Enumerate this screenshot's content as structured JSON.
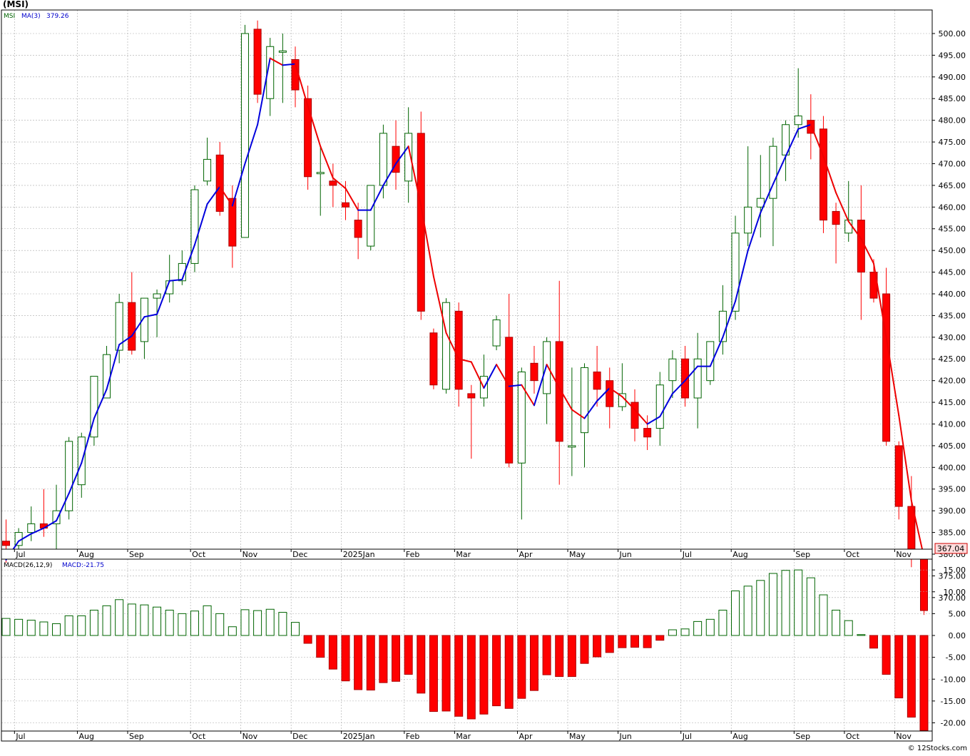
{
  "title": "(MSI)",
  "price_panel": {
    "legend_symbol": "MSI",
    "legend_ma": "MA(3)",
    "legend_ma_value": "379.26",
    "last_price_label": "367.04",
    "y_ticks": [
      370,
      375,
      380,
      385,
      390,
      395,
      400,
      405,
      410,
      415,
      420,
      425,
      430,
      435,
      440,
      445,
      450,
      455,
      460,
      465,
      470,
      475,
      480,
      485,
      490,
      495,
      500
    ],
    "y_tick_labels": [
      "370.00",
      "375.00",
      "380.00",
      "385.00",
      "390.00",
      "395.00",
      "400.00",
      "405.00",
      "410.00",
      "415.00",
      "420.00",
      "425.00",
      "430.00",
      "435.00",
      "440.00",
      "445.00",
      "450.00",
      "455.00",
      "460.00",
      "465.00",
      "470.00",
      "475.00",
      "480.00",
      "485.00",
      "490.00",
      "495.00",
      "500.00"
    ]
  },
  "macd_panel": {
    "legend_name": "MACD(26,12,9)",
    "legend_value": "MACD:-21.75",
    "y_ticks": [
      -20,
      -15,
      -10,
      -5,
      0,
      5,
      10,
      15
    ],
    "y_tick_labels": [
      "-20.00",
      "-15.00",
      "-10.00",
      "-5.00",
      "0.00",
      "5.00",
      "10.00",
      "15.00"
    ]
  },
  "month_labels": [
    "Jul",
    "Aug",
    "Sep",
    "Oct",
    "Nov",
    "Dec",
    "2025Jan",
    "Feb",
    "Mar",
    "Apr",
    "May",
    "Jun",
    "Jul",
    "Aug",
    "Sep",
    "Oct",
    "Nov"
  ],
  "watermark": "© 12Stocks.com",
  "colors": {
    "up": "#006400",
    "down": "#ff0000",
    "ma_up": "#0000dd",
    "ma_down": "#ee0000",
    "grid": "#aaaaaa",
    "last_label_bg": "#ffdddd"
  },
  "chart_data": {
    "type": "candlestick",
    "period": "weekly",
    "month_start_index": [
      1,
      6,
      10,
      15,
      19,
      23,
      27,
      32,
      36,
      41,
      45,
      49,
      54,
      58,
      63,
      67,
      71
    ],
    "ohlc": [
      [
        383,
        388,
        378,
        382
      ],
      [
        382,
        386,
        380,
        385
      ],
      [
        385,
        391,
        383,
        387
      ],
      [
        387,
        395,
        384,
        386
      ],
      [
        387,
        396,
        381,
        390
      ],
      [
        390,
        407,
        388,
        406
      ],
      [
        396,
        408,
        393,
        407
      ],
      [
        407,
        420,
        405,
        421
      ],
      [
        416,
        428,
        416,
        426
      ],
      [
        427,
        440,
        424,
        438
      ],
      [
        438,
        445,
        426,
        427
      ],
      [
        429,
        439,
        425,
        439
      ],
      [
        439,
        441,
        430,
        440
      ],
      [
        440,
        449,
        438,
        443
      ],
      [
        443,
        450,
        442,
        447
      ],
      [
        447,
        465,
        445,
        464
      ],
      [
        466,
        476,
        465,
        471
      ],
      [
        472,
        475,
        458,
        459
      ],
      [
        462,
        465,
        446,
        451
      ],
      [
        453,
        502,
        453,
        500
      ],
      [
        501,
        503,
        484,
        486
      ],
      [
        485,
        499,
        481,
        497
      ],
      [
        496,
        500,
        484,
        496
      ],
      [
        494,
        497,
        483,
        487
      ],
      [
        485,
        488,
        464,
        467
      ],
      [
        468,
        474,
        458,
        468
      ],
      [
        466,
        470,
        460,
        465
      ],
      [
        461,
        466,
        457,
        460
      ],
      [
        457,
        461,
        448,
        453
      ],
      [
        451,
        465,
        450,
        465
      ],
      [
        465,
        479,
        462,
        477
      ],
      [
        474,
        480,
        464,
        468
      ],
      [
        466,
        483,
        461,
        477
      ],
      [
        477,
        482,
        434,
        436
      ],
      [
        431,
        432,
        418,
        419
      ],
      [
        418,
        439,
        417,
        438
      ],
      [
        436,
        438,
        414,
        418
      ],
      [
        417,
        419,
        402,
        416
      ],
      [
        416,
        426,
        414,
        421
      ],
      [
        428,
        435,
        427,
        434
      ],
      [
        430,
        440,
        400,
        401
      ],
      [
        401,
        423,
        388,
        422
      ],
      [
        424,
        428,
        417,
        420
      ],
      [
        417,
        430,
        410,
        429
      ],
      [
        429,
        443,
        396,
        406
      ],
      [
        405,
        423,
        398,
        405
      ],
      [
        408,
        424,
        400,
        423
      ],
      [
        422,
        428,
        414,
        418
      ],
      [
        420,
        423,
        409,
        414
      ],
      [
        414,
        424,
        413,
        417
      ],
      [
        415,
        418,
        406,
        409
      ],
      [
        409,
        412,
        404,
        407
      ],
      [
        409,
        422,
        405,
        419
      ],
      [
        420,
        427,
        416,
        425
      ],
      [
        425,
        428,
        414,
        416
      ],
      [
        416,
        431,
        409,
        425
      ],
      [
        420,
        429,
        419,
        429
      ],
      [
        429,
        442,
        426,
        436
      ],
      [
        436,
        458,
        434,
        454
      ],
      [
        454,
        474,
        451,
        460
      ],
      [
        460,
        472,
        453,
        462
      ],
      [
        462,
        476,
        451,
        474
      ],
      [
        472,
        480,
        466,
        479
      ],
      [
        479,
        492,
        476,
        481
      ],
      [
        480,
        486,
        471,
        477
      ],
      [
        478,
        481,
        454,
        457
      ],
      [
        459,
        461,
        447,
        456
      ],
      [
        454,
        466,
        452,
        457
      ],
      [
        457,
        465,
        434,
        445
      ],
      [
        445,
        448,
        438,
        439
      ],
      [
        440,
        446,
        405,
        406
      ],
      [
        405,
        406,
        388,
        391
      ],
      [
        391,
        398,
        377,
        380
      ],
      [
        380,
        381,
        366,
        367
      ]
    ],
    "ma3": [
      378.7,
      383.0,
      384.7,
      386.0,
      387.7,
      394.0,
      401.0,
      411.3,
      418.0,
      428.3,
      430.3,
      434.7,
      435.3,
      443.0,
      443.3,
      451.3,
      460.7,
      464.7,
      460.3,
      470.0,
      479.0,
      494.3,
      492.7,
      493.0,
      483.3,
      474.0,
      466.7,
      464.3,
      459.3,
      459.3,
      465.0,
      470.0,
      474.0,
      460.3,
      444.0,
      431.0,
      425.0,
      424.3,
      418.3,
      423.7,
      418.7,
      419.0,
      414.3,
      423.7,
      418.3,
      413.3,
      411.3,
      415.3,
      418.3,
      416.3,
      413.3,
      410.0,
      411.7,
      417.0,
      420.0,
      423.3,
      423.3,
      430.0,
      438.3,
      450.0,
      458.7,
      465.3,
      471.7,
      478.0,
      479.0,
      471.7,
      463.3,
      456.7,
      452.7,
      447.0,
      430.0,
      412.0,
      392.3,
      379.3
    ],
    "macd_hist": [
      3.9,
      3.7,
      3.5,
      3.1,
      2.7,
      4.5,
      4.5,
      5.8,
      6.8,
      8.2,
      7.2,
      7.0,
      6.5,
      5.8,
      5.0,
      5.6,
      6.8,
      5.0,
      2.0,
      5.9,
      5.7,
      6.0,
      5.3,
      3.0,
      -1.8,
      -5.0,
      -7.7,
      -10.4,
      -12.4,
      -12.5,
      -10.8,
      -10.5,
      -8.9,
      -13.2,
      -17.4,
      -17.3,
      -18.5,
      -19.1,
      -18.0,
      -16.1,
      -16.7,
      -14.4,
      -12.6,
      -9.0,
      -9.4,
      -9.4,
      -6.4,
      -4.9,
      -3.9,
      -2.8,
      -2.7,
      -2.8,
      -1.1,
      1.3,
      1.5,
      3.2,
      3.7,
      5.8,
      10.2,
      11.3,
      12.6,
      14.2,
      14.9,
      15.0,
      13.2,
      9.3,
      5.8,
      3.4,
      0.2,
      -2.9,
      -8.9,
      -14.3,
      -18.7,
      -21.75
    ]
  }
}
